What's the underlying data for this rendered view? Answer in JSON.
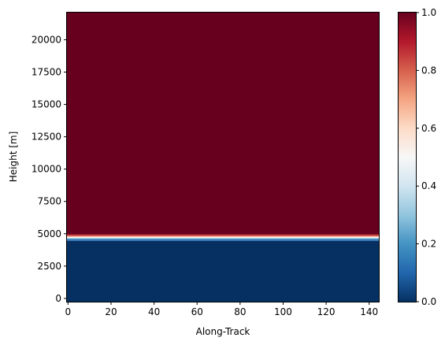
{
  "chart_data": {
    "type": "heatmap",
    "title": "",
    "xlabel": "Along-Track",
    "ylabel": "Height [m]",
    "xlim": [
      -0.5,
      144.5
    ],
    "ylim": [
      -250,
      22100
    ],
    "x_ticks": [
      0,
      20,
      40,
      60,
      80,
      100,
      120,
      140
    ],
    "x_tick_labels": [
      "0",
      "20",
      "40",
      "60",
      "80",
      "100",
      "120",
      "140"
    ],
    "y_ticks": [
      0,
      2500,
      5000,
      7500,
      10000,
      12500,
      15000,
      17500,
      20000
    ],
    "y_tick_labels": [
      "0",
      "2500",
      "5000",
      "7500",
      "10000",
      "12500",
      "15000",
      "17500",
      "20000"
    ],
    "colormap": "RdBu_r",
    "colorbar": {
      "range": [
        0,
        1
      ],
      "ticks": [
        0,
        0.2,
        0.4,
        0.6,
        0.8,
        1.0
      ],
      "tick_labels": [
        "0.0",
        "0.2",
        "0.4",
        "0.6",
        "0.8",
        "1.0"
      ],
      "low_color": "#053061",
      "mid_color": "#f7f7f7",
      "high_color": "#67001f"
    },
    "bands": [
      {
        "y_from": -250,
        "y_to": 4450,
        "value": 0.0
      },
      {
        "y_from": 4450,
        "y_to": 4550,
        "value": 0.1
      },
      {
        "y_from": 4550,
        "y_to": 4620,
        "value": 0.2
      },
      {
        "y_from": 4620,
        "y_to": 4690,
        "value": 0.35
      },
      {
        "y_from": 4690,
        "y_to": 4750,
        "value": 0.5
      },
      {
        "y_from": 4750,
        "y_to": 4810,
        "value": 0.65
      },
      {
        "y_from": 4810,
        "y_to": 4880,
        "value": 0.8
      },
      {
        "y_from": 4880,
        "y_to": 4960,
        "value": 0.9
      },
      {
        "y_from": 4960,
        "y_to": 22100,
        "value": 1.0
      }
    ],
    "grid": false,
    "legend": "colorbar-right"
  }
}
